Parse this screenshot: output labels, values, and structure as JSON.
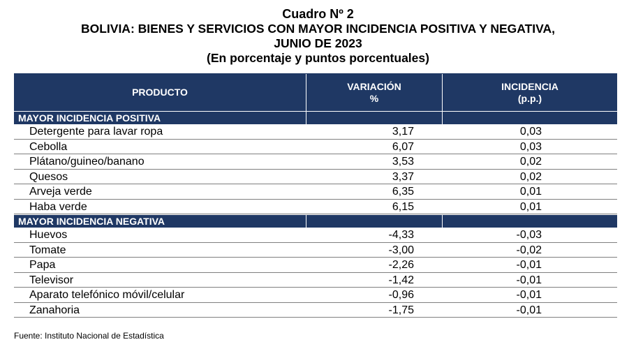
{
  "title": {
    "line1": "Cuadro Nº 2",
    "line2": "BOLIVIA: BIENES Y SERVICIOS CON MAYOR INCIDENCIA POSITIVA Y NEGATIVA,",
    "line3": "JUNIO DE 2023",
    "line4": "(En porcentaje y puntos porcentuales)"
  },
  "headers": {
    "producto": "PRODUCTO",
    "variacion_l1": "VARIACIÓN",
    "variacion_l2": "%",
    "incidencia_l1": "INCIDENCIA",
    "incidencia_l2": "(p.p.)"
  },
  "positive": {
    "label": "MAYOR INCIDENCIA POSITIVA",
    "rows": [
      {
        "producto": "Detergente para lavar ropa",
        "variacion": "3,17",
        "incidencia": "0,03"
      },
      {
        "producto": "Cebolla",
        "variacion": "6,07",
        "incidencia": "0,03"
      },
      {
        "producto": "Plátano/guineo/banano",
        "variacion": "3,53",
        "incidencia": "0,02"
      },
      {
        "producto": "Quesos",
        "variacion": "3,37",
        "incidencia": "0,02"
      },
      {
        "producto": "Arveja verde",
        "variacion": "6,35",
        "incidencia": "0,01"
      },
      {
        "producto": "Haba verde",
        "variacion": "6,15",
        "incidencia": "0,01"
      }
    ]
  },
  "negative": {
    "label": "MAYOR INCIDENCIA NEGATIVA",
    "rows": [
      {
        "producto": "Huevos",
        "variacion": "-4,33",
        "incidencia": "-0,03"
      },
      {
        "producto": "Tomate",
        "variacion": "-3,00",
        "incidencia": "-0,02"
      },
      {
        "producto": "Papa",
        "variacion": "-2,26",
        "incidencia": "-0,01"
      },
      {
        "producto": "Televisor",
        "variacion": "-1,42",
        "incidencia": "-0,01"
      },
      {
        "producto": "Aparato telefónico móvil/celular",
        "variacion": "-0,96",
        "incidencia": "-0,01"
      },
      {
        "producto": "Zanahoria",
        "variacion": "-1,75",
        "incidencia": "-0,01"
      }
    ]
  },
  "source": "Fuente: Instituto Nacional de Estadística",
  "colors": {
    "header_bg": "#1f3864",
    "header_text": "#ffffff"
  }
}
